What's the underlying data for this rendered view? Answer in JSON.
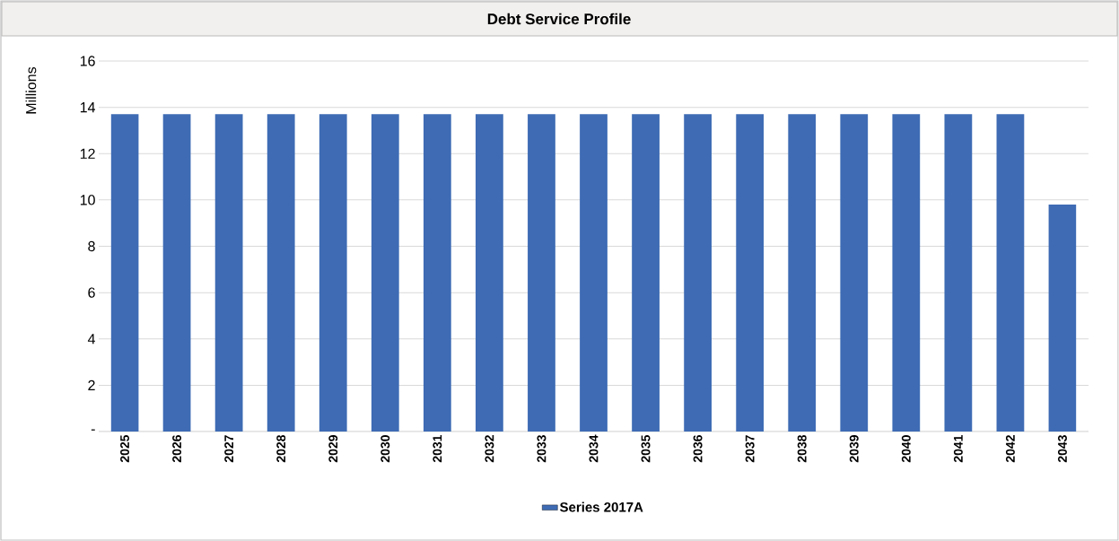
{
  "chart_data": {
    "type": "bar",
    "title": "Debt Service Profile",
    "ylabel": "Millions",
    "categories": [
      "2025",
      "2026",
      "2027",
      "2028",
      "2029",
      "2030",
      "2031",
      "2032",
      "2033",
      "2034",
      "2035",
      "2036",
      "2037",
      "2038",
      "2039",
      "2040",
      "2041",
      "2042",
      "2043"
    ],
    "series": [
      {
        "name": "Series 2017A",
        "color": "#3e6bb4",
        "values": [
          13.7,
          13.7,
          13.7,
          13.7,
          13.7,
          13.7,
          13.7,
          13.7,
          13.7,
          13.7,
          13.7,
          13.7,
          13.7,
          13.7,
          13.7,
          13.7,
          13.7,
          13.7,
          9.8
        ]
      }
    ],
    "ylim": [
      0,
      16
    ],
    "yticks": [
      {
        "value": 0,
        "label": "-"
      },
      2,
      4,
      6,
      8,
      10,
      12,
      14,
      16
    ],
    "grid": "y",
    "legend": "bottom"
  }
}
